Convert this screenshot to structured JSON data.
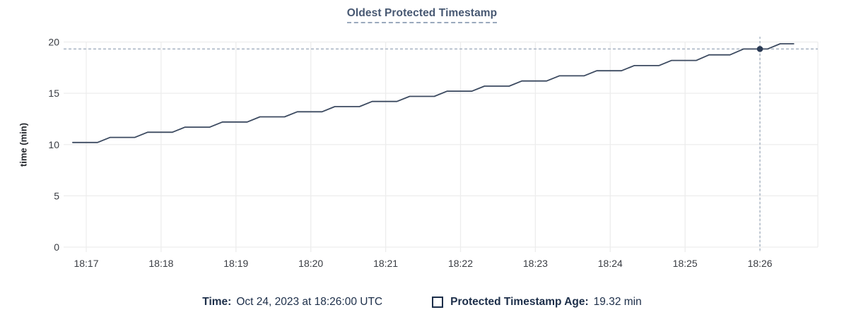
{
  "header": {
    "title": "Oldest Protected Timestamp"
  },
  "footer": {
    "time_label": "Time:",
    "time_value": "Oct 24, 2023 at 18:26:00 UTC",
    "series_label": "Protected Timestamp Age:",
    "series_value": "19.32 min"
  },
  "colors": {
    "title": "#475872",
    "title_underline": "#9aa9bd",
    "footer_text": "#1c2e49",
    "line": "#3c4a60",
    "dot": "#2a3a54",
    "crosshair": "#a7b3c2",
    "grid": "#ededed",
    "axis_text": "#3a3d43",
    "background": "#ffffff"
  },
  "chart_data": {
    "type": "line",
    "title": "Oldest Protected Timestamp",
    "xlabel": "",
    "ylabel": "time (min)",
    "ylim": [
      0,
      20
    ],
    "y_ticks": [
      0,
      5,
      10,
      15,
      20
    ],
    "x_tick_labels": [
      "18:17",
      "18:18",
      "18:19",
      "18:20",
      "18:21",
      "18:22",
      "18:23",
      "18:24",
      "18:25",
      "18:26"
    ],
    "x_tick_minutes": [
      0,
      1,
      2,
      3,
      4,
      5,
      6,
      7,
      8,
      9
    ],
    "x_domain_minutes": [
      -0.3,
      9.78
    ],
    "grid": true,
    "legend_position": "bottom",
    "series": [
      {
        "name": "Protected Timestamp Age",
        "unit": "min",
        "t_minutes_from_18_17": [
          -0.18,
          0.15,
          0.32,
          0.65,
          0.82,
          1.15,
          1.32,
          1.65,
          1.82,
          2.15,
          2.32,
          2.65,
          2.82,
          3.15,
          3.32,
          3.65,
          3.82,
          4.15,
          4.32,
          4.65,
          4.82,
          5.15,
          5.32,
          5.65,
          5.82,
          6.15,
          6.32,
          6.65,
          6.82,
          7.15,
          7.32,
          7.65,
          7.82,
          8.15,
          8.32,
          8.6,
          8.78,
          9.1,
          9.27,
          9.45
        ],
        "values_min": [
          10.2,
          10.2,
          10.7,
          10.7,
          11.2,
          11.2,
          11.7,
          11.7,
          12.2,
          12.2,
          12.7,
          12.7,
          13.2,
          13.2,
          13.7,
          13.7,
          14.2,
          14.2,
          14.7,
          14.7,
          15.2,
          15.2,
          15.7,
          15.7,
          16.2,
          16.2,
          16.7,
          16.7,
          17.2,
          17.2,
          17.7,
          17.7,
          18.2,
          18.2,
          18.75,
          18.75,
          19.32,
          19.32,
          19.83,
          19.83
        ]
      }
    ],
    "crosshair": {
      "t_minutes": 9,
      "time_label": "18:26",
      "time_full": "Oct 24, 2023 at 18:26:00 UTC",
      "value_min": 19.32
    }
  }
}
